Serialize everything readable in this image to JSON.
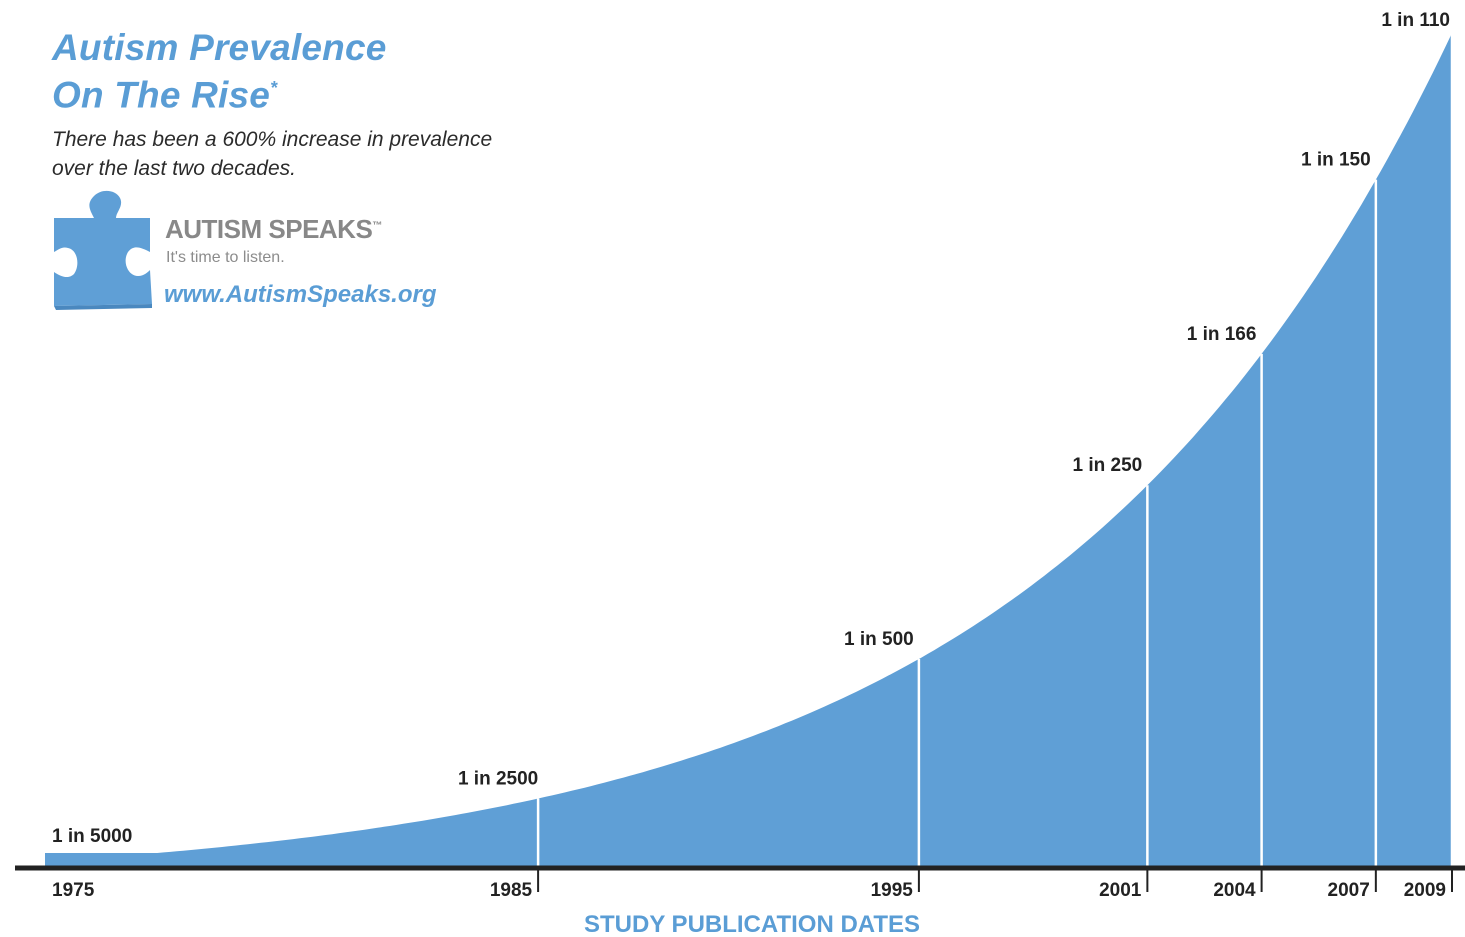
{
  "header": {
    "title_line1": "Autism Prevalence",
    "title_line2": "On The Rise",
    "title_mark": "*",
    "subtitle_line1": "There has been a 600% increase in prevalence",
    "subtitle_line2": "over the last two decades."
  },
  "brand": {
    "logo_icon": "puzzle-piece-icon",
    "name": "AUTISM SPEAKS",
    "trademark": "™",
    "tagline": "It's time to listen.",
    "url": "www.AutismSpeaks.org"
  },
  "colors": {
    "area_fill": "#5f9fd6",
    "title_blue": "#5a9dd5",
    "axis": "#222222",
    "marker_line": "#ffffff"
  },
  "chart_data": {
    "type": "area",
    "xlabel": "STUDY PUBLICATION DATES",
    "ylabel": "",
    "x": [
      1975,
      1985,
      1995,
      2001,
      2004,
      2007,
      2009
    ],
    "x_tick_labels": [
      "1975",
      "1985",
      "1995",
      "2001",
      "2004",
      "2007",
      "2009"
    ],
    "point_labels": [
      "1 in 5000",
      "1 in 2500",
      "1 in 500",
      "1 in 250",
      "1 in 166",
      "1 in 150",
      "1 in 110"
    ],
    "prevalence_per_10000": [
      2,
      4,
      20,
      40,
      60.2,
      66.7,
      90.9
    ],
    "xlim": [
      1975,
      2009
    ],
    "grid": false,
    "legend": "none"
  }
}
